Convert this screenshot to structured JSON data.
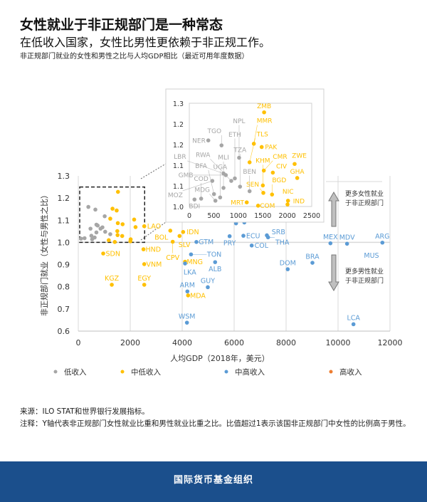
{
  "header": {
    "title": "女性就业于非正规部门是一种常态",
    "subtitle": "在低收入国家，女性比男性更依赖于非正规工作。",
    "caption": "非正规部门就业的女性和男性之比与人均GDP相比（最近可用年度数据）"
  },
  "chart_data": {
    "type": "scatter",
    "xlabel": "人均GDP（2018年，美元）",
    "ylabel": "非正规部门就业（女性与男性之比）",
    "xlim": [
      0,
      12000
    ],
    "ylim": [
      0.6,
      1.3
    ],
    "xticks": [
      "0",
      "2000",
      "4000",
      "6000",
      "8000",
      "10000",
      "12000"
    ],
    "yticks": [
      "0.6",
      "0.7",
      "0.8",
      "0.9",
      "1.0",
      "1.1",
      "1.2",
      "1.3"
    ],
    "grid": "vertical and y=1.0",
    "inset": {
      "xlim": [
        0,
        2500
      ],
      "ylim": [
        1.0,
        1.25
      ],
      "xticks": [
        "0",
        "500",
        "1000",
        "1500",
        "2000",
        "2500"
      ],
      "yticks": [
        "1.0",
        "1.1",
        "1.1",
        "1.2",
        "1.2",
        "1.3"
      ]
    },
    "annotations": {
      "up": "更多女性就业|于非正规部门",
      "down": "更多男性就业|于非正规部门",
      "extra_label": "MUS"
    },
    "legend": [
      {
        "name": "低收入",
        "color": "#a6a6a6"
      },
      {
        "name": "中低收入",
        "color": "#ffc000"
      },
      {
        "name": "中高收入",
        "color": "#5b9bd5"
      },
      {
        "name": "高收入",
        "color": "#ed7d31"
      }
    ],
    "legend_position": "bottom",
    "series": [
      {
        "name": "低收入",
        "color": "#a6a6a6",
        "points": [
          {
            "label": "NER",
            "x": 388,
            "y": 1.16
          },
          {
            "label": "TGO",
            "x": 658,
            "y": 1.148
          },
          {
            "label": "NPL",
            "x": 1017,
            "y": 1.118
          },
          {
            "label": "LBR",
            "x": 698,
            "y": 1.08
          },
          {
            "label": "GMB",
            "x": 746,
            "y": 1.076
          },
          {
            "label": "ETH",
            "x": 930,
            "y": 1.068
          },
          {
            "label": "RWA",
            "x": 857,
            "y": 1.062
          },
          {
            "label": "MOZ",
            "x": 470,
            "y": 1.062
          },
          {
            "label": "MLI",
            "x": 698,
            "y": 1.045
          },
          {
            "label": "BFA",
            "x": 504,
            "y": 1.03
          },
          {
            "label": "TZA",
            "x": 1036,
            "y": 1.048
          },
          {
            "label": "BEN",
            "x": 1231,
            "y": 1.037
          },
          {
            "label": "UGA",
            "x": 630,
            "y": 1.022
          },
          {
            "label": "MDG",
            "x": 533,
            "y": 1.014
          },
          {
            "label": "COD",
            "x": 242,
            "y": 1.019
          },
          {
            "label": "BDI",
            "x": 106,
            "y": 1.017
          }
        ]
      },
      {
        "name": "中低收入",
        "color": "#ffc000",
        "points": [
          {
            "label": "ZMB",
            "x": 1528,
            "y": 1.228
          },
          {
            "label": "MMR",
            "x": 1318,
            "y": 1.152
          },
          {
            "label": "PAK",
            "x": 1478,
            "y": 1.144
          },
          {
            "label": "TLS",
            "x": 1231,
            "y": 1.107
          },
          {
            "label": "ZWE",
            "x": 2151,
            "y": 1.103
          },
          {
            "label": "CMR",
            "x": 1522,
            "y": 1.087
          },
          {
            "label": "CIV",
            "x": 1706,
            "y": 1.082
          },
          {
            "label": "GHA",
            "x": 2204,
            "y": 1.069
          },
          {
            "label": "KHM",
            "x": 1502,
            "y": 1.051
          },
          {
            "label": "SEN",
            "x": 1512,
            "y": 1.033
          },
          {
            "label": "BGD",
            "x": 1690,
            "y": 1.029
          },
          {
            "label": "NIC",
            "x": 2016,
            "y": 1.014
          },
          {
            "label": "IND",
            "x": 2006,
            "y": 1.005
          },
          {
            "label": "MRT",
            "x": 1173,
            "y": 1.01
          },
          {
            "label": "COM",
            "x": 1405,
            "y": 1.002
          },
          {
            "label": "LAO",
            "x": 2540,
            "y": 1.073
          },
          {
            "label": "HND",
            "x": 2510,
            "y": 0.969
          },
          {
            "label": "VNM",
            "x": 2540,
            "y": 0.902
          },
          {
            "label": "SDN",
            "x": 960,
            "y": 0.95
          },
          {
            "label": "KGZ",
            "x": 1290,
            "y": 0.809
          },
          {
            "label": "EGY",
            "x": 2540,
            "y": 0.809
          },
          {
            "label": "BOL",
            "x": 3543,
            "y": 1.053
          },
          {
            "label": "SLV",
            "x": 3899,
            "y": 1.029
          },
          {
            "label": "IDN",
            "x": 4036,
            "y": 1.047
          },
          {
            "label": "CPV",
            "x": 3635,
            "y": 1.003
          },
          {
            "label": "MNG",
            "x": 4110,
            "y": 0.913
          },
          {
            "label": "MDA",
            "x": 4228,
            "y": 0.761
          }
        ]
      },
      {
        "name": "中高收入",
        "color": "#5b9bd5",
        "points": [
          {
            "label": "GTM",
            "x": 4548,
            "y": 1.002
          },
          {
            "label": "TON",
            "x": 4340,
            "y": 0.946
          },
          {
            "label": "LKA",
            "x": 4110,
            "y": 0.905
          },
          {
            "label": "ALB",
            "x": 5268,
            "y": 0.911
          },
          {
            "label": "GUY",
            "x": 4986,
            "y": 0.798
          },
          {
            "label": "ARM",
            "x": 4200,
            "y": 0.779
          },
          {
            "label": "WSM",
            "x": 4183,
            "y": 0.638
          },
          {
            "label": "PRY",
            "x": 5826,
            "y": 1.028
          },
          {
            "label": "ECU",
            "x": 6356,
            "y": 1.03
          },
          {
            "label": "",
            "x": 6073,
            "y": 1.086
          },
          {
            "label": "",
            "x": 6393,
            "y": 1.09
          },
          {
            "label": "COL",
            "x": 6676,
            "y": 0.986
          },
          {
            "label": "SRB",
            "x": 7260,
            "y": 1.032
          },
          {
            "label": "THA",
            "x": 7306,
            "y": 1.023
          },
          {
            "label": "DOM",
            "x": 8063,
            "y": 0.879
          },
          {
            "label": "BRA",
            "x": 9014,
            "y": 0.908
          },
          {
            "label": "MEX",
            "x": 9707,
            "y": 0.996
          },
          {
            "label": "MDV",
            "x": 10347,
            "y": 0.994
          },
          {
            "label": "ARG",
            "x": 11707,
            "y": 0.999
          },
          {
            "label": "LCA",
            "x": 10594,
            "y": 0.631
          }
        ]
      }
    ]
  },
  "notes": {
    "source": "来源：ILO STAT和世界银行发展指标。",
    "note": "注释：Y轴代表非正规部门女性就业比重和男性就业比重之比。比值超过1表示该国非正规部门中女性的比例高于男性。"
  },
  "footer": {
    "org": "国际货币基金组织"
  }
}
